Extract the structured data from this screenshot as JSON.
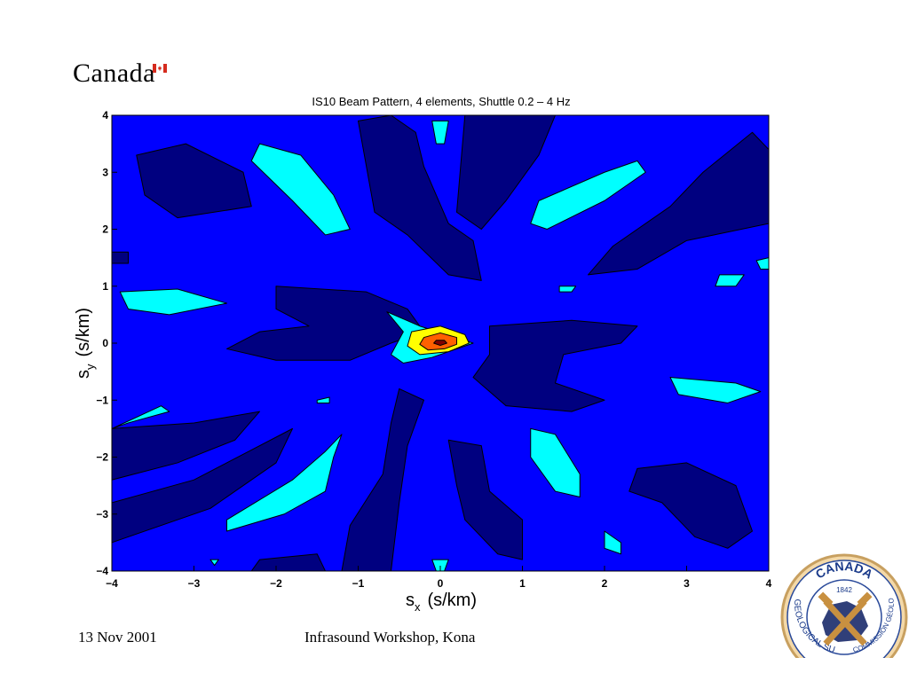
{
  "header": {
    "brand": "Canada"
  },
  "footer": {
    "date": "13 Nov 2001",
    "event": "Infrasound Workshop, Kona"
  },
  "seal": {
    "top_text": "CANADA",
    "year": "1842",
    "left_text": "GEOLOGICAL SURVEY",
    "right_text": "COMMISSION GÉOLOGIQUE"
  },
  "colors": {
    "background_level": "#0000ff",
    "dark_level": "#000080",
    "cyan_level": "#00ffff",
    "yellow_level": "#ffff00",
    "orange_level": "#ff6000",
    "peak_level": "#800000"
  },
  "chart_data": {
    "type": "heatmap",
    "subtype": "contour",
    "title": "IS10 Beam Pattern, 4 elements, Shuttle 0.2 – 4 Hz",
    "xlabel_main": "s",
    "xlabel_sub": "x",
    "xlabel_unit": "(s/km)",
    "ylabel_main": "s",
    "ylabel_sub": "y",
    "ylabel_unit": "(s/km)",
    "xlim": [
      -4,
      4
    ],
    "ylim": [
      -4,
      4
    ],
    "xticks": [
      -4,
      -3,
      -2,
      -1,
      0,
      1,
      2,
      3,
      4
    ],
    "yticks": [
      -4,
      -3,
      -2,
      -1,
      0,
      1,
      2,
      3,
      4
    ],
    "xtick_labels": [
      "−4",
      "−3",
      "−2",
      "−1",
      "0",
      "1",
      "2",
      "3",
      "4"
    ],
    "ytick_labels": [
      "−4",
      "−3",
      "−2",
      "−1",
      "0",
      "1",
      "2",
      "3",
      "4"
    ],
    "grid": false,
    "peak": {
      "x": 0,
      "y": 0
    },
    "regions": [
      {
        "level": "dark",
        "pts": [
          [
            -3.7,
            3.3
          ],
          [
            -3.1,
            3.5
          ],
          [
            -2.4,
            3.0
          ],
          [
            -2.3,
            2.4
          ],
          [
            -3.2,
            2.2
          ],
          [
            -3.6,
            2.6
          ]
        ]
      },
      {
        "level": "dark",
        "pts": [
          [
            -1.0,
            3.9
          ],
          [
            -0.6,
            4.0
          ],
          [
            -0.3,
            3.7
          ],
          [
            -0.2,
            3.1
          ],
          [
            0.1,
            2.1
          ],
          [
            0.4,
            1.8
          ],
          [
            0.5,
            1.1
          ],
          [
            0.1,
            1.2
          ],
          [
            -0.4,
            1.9
          ],
          [
            -0.8,
            2.3
          ],
          [
            -0.9,
            3.1
          ]
        ]
      },
      {
        "level": "dark",
        "pts": [
          [
            0.3,
            4.0
          ],
          [
            1.4,
            4.0
          ],
          [
            1.2,
            3.3
          ],
          [
            0.8,
            2.5
          ],
          [
            0.5,
            2.0
          ],
          [
            0.2,
            2.3
          ]
        ]
      },
      {
        "level": "dark",
        "pts": [
          [
            3.8,
            3.7
          ],
          [
            4.0,
            3.4
          ],
          [
            4.0,
            2.1
          ],
          [
            3.0,
            1.8
          ],
          [
            2.4,
            1.3
          ],
          [
            1.8,
            1.2
          ],
          [
            2.1,
            1.7
          ],
          [
            2.8,
            2.4
          ],
          [
            3.2,
            3.0
          ]
        ]
      },
      {
        "level": "dark",
        "pts": [
          [
            -2.0,
            1.0
          ],
          [
            -0.9,
            0.9
          ],
          [
            -0.4,
            0.6
          ],
          [
            -0.2,
            0.2
          ],
          [
            -0.6,
            0.0
          ],
          [
            -1.1,
            -0.3
          ],
          [
            -2.0,
            -0.3
          ],
          [
            -2.6,
            -0.1
          ],
          [
            -2.2,
            0.2
          ],
          [
            -1.6,
            0.3
          ],
          [
            -2.0,
            0.6
          ]
        ]
      },
      {
        "level": "dark",
        "pts": [
          [
            0.6,
            0.3
          ],
          [
            1.6,
            0.4
          ],
          [
            2.4,
            0.3
          ],
          [
            2.2,
            0.0
          ],
          [
            1.5,
            -0.2
          ],
          [
            1.4,
            -0.7
          ],
          [
            2.0,
            -1.0
          ],
          [
            1.6,
            -1.2
          ],
          [
            0.8,
            -1.1
          ],
          [
            0.4,
            -0.6
          ],
          [
            0.6,
            -0.2
          ]
        ]
      },
      {
        "level": "dark",
        "pts": [
          [
            -4.0,
            -1.5
          ],
          [
            -3.0,
            -1.4
          ],
          [
            -2.2,
            -1.2
          ],
          [
            -2.5,
            -1.7
          ],
          [
            -3.2,
            -2.1
          ],
          [
            -4.0,
            -2.4
          ]
        ]
      },
      {
        "level": "dark",
        "pts": [
          [
            -4.0,
            -2.8
          ],
          [
            -3.0,
            -2.4
          ],
          [
            -1.8,
            -1.5
          ],
          [
            -2.0,
            -2.1
          ],
          [
            -2.8,
            -2.9
          ],
          [
            -4.0,
            -3.5
          ]
        ]
      },
      {
        "level": "dark",
        "pts": [
          [
            -0.5,
            -0.8
          ],
          [
            -0.2,
            -1.0
          ],
          [
            -0.4,
            -1.8
          ],
          [
            -0.5,
            -2.8
          ],
          [
            -0.6,
            -4.0
          ],
          [
            -1.2,
            -4.0
          ],
          [
            -1.1,
            -3.2
          ],
          [
            -0.7,
            -2.3
          ],
          [
            -0.6,
            -1.4
          ]
        ]
      },
      {
        "level": "dark",
        "pts": [
          [
            0.1,
            -1.7
          ],
          [
            0.5,
            -1.8
          ],
          [
            0.6,
            -2.6
          ],
          [
            1.0,
            -3.1
          ],
          [
            1.0,
            -3.8
          ],
          [
            0.7,
            -3.7
          ],
          [
            0.3,
            -3.1
          ],
          [
            0.2,
            -2.5
          ]
        ]
      },
      {
        "level": "dark",
        "pts": [
          [
            2.4,
            -2.2
          ],
          [
            3.0,
            -2.1
          ],
          [
            3.6,
            -2.5
          ],
          [
            3.8,
            -3.3
          ],
          [
            3.5,
            -3.6
          ],
          [
            3.1,
            -3.4
          ],
          [
            2.7,
            -2.8
          ],
          [
            2.3,
            -2.6
          ]
        ]
      },
      {
        "level": "dark",
        "pts": [
          [
            -2.2,
            -3.8
          ],
          [
            -1.5,
            -3.7
          ],
          [
            -1.4,
            -4.0
          ],
          [
            -2.3,
            -4.0
          ]
        ]
      },
      {
        "level": "dark",
        "pts": [
          [
            -4.0,
            1.6
          ],
          [
            -3.8,
            1.6
          ],
          [
            -3.8,
            1.4
          ],
          [
            -4.0,
            1.4
          ]
        ]
      },
      {
        "level": "cyan",
        "pts": [
          [
            -2.2,
            3.5
          ],
          [
            -1.7,
            3.3
          ],
          [
            -1.3,
            2.6
          ],
          [
            -1.1,
            2.0
          ],
          [
            -1.4,
            1.9
          ],
          [
            -1.8,
            2.5
          ],
          [
            -2.3,
            3.2
          ]
        ]
      },
      {
        "level": "cyan",
        "pts": [
          [
            1.2,
            2.5
          ],
          [
            2.0,
            3.0
          ],
          [
            2.4,
            3.2
          ],
          [
            2.5,
            3.0
          ],
          [
            2.0,
            2.5
          ],
          [
            1.3,
            2.0
          ],
          [
            1.1,
            2.1
          ]
        ]
      },
      {
        "level": "cyan",
        "pts": [
          [
            -3.9,
            0.9
          ],
          [
            -3.2,
            0.95
          ],
          [
            -2.6,
            0.7
          ],
          [
            -3.3,
            0.5
          ],
          [
            -3.8,
            0.6
          ]
        ]
      },
      {
        "level": "cyan",
        "pts": [
          [
            2.8,
            -0.6
          ],
          [
            3.6,
            -0.7
          ],
          [
            3.9,
            -0.85
          ],
          [
            3.5,
            -1.05
          ],
          [
            2.9,
            -0.9
          ]
        ]
      },
      {
        "level": "cyan",
        "pts": [
          [
            -4.0,
            -1.5
          ],
          [
            -3.4,
            -1.1
          ],
          [
            -3.3,
            -1.2
          ],
          [
            -3.8,
            -1.4
          ]
        ]
      },
      {
        "level": "cyan",
        "pts": [
          [
            -1.2,
            -1.6
          ],
          [
            -1.4,
            -1.9
          ],
          [
            -1.8,
            -2.4
          ],
          [
            -2.6,
            -3.1
          ],
          [
            -2.6,
            -3.3
          ],
          [
            -1.9,
            -3.0
          ],
          [
            -1.4,
            -2.6
          ],
          [
            -1.3,
            -2.0
          ]
        ]
      },
      {
        "level": "cyan",
        "pts": [
          [
            1.1,
            -1.5
          ],
          [
            1.4,
            -1.6
          ],
          [
            1.7,
            -2.3
          ],
          [
            1.7,
            -2.7
          ],
          [
            1.4,
            -2.6
          ],
          [
            1.1,
            -2.0
          ]
        ]
      },
      {
        "level": "cyan",
        "pts": [
          [
            -0.1,
            3.9
          ],
          [
            0.1,
            3.9
          ],
          [
            0.05,
            3.5
          ],
          [
            -0.05,
            3.5
          ]
        ]
      },
      {
        "level": "cyan",
        "pts": [
          [
            3.4,
            1.2
          ],
          [
            3.7,
            1.2
          ],
          [
            3.6,
            1.0
          ],
          [
            3.35,
            1.0
          ]
        ]
      },
      {
        "level": "cyan",
        "pts": [
          [
            3.85,
            1.45
          ],
          [
            4.0,
            1.5
          ],
          [
            4.0,
            1.3
          ],
          [
            3.9,
            1.3
          ]
        ]
      },
      {
        "level": "cyan",
        "pts": [
          [
            1.45,
            1.0
          ],
          [
            1.65,
            1.0
          ],
          [
            1.6,
            0.9
          ],
          [
            1.45,
            0.9
          ]
        ]
      },
      {
        "level": "cyan",
        "pts": [
          [
            -0.1,
            -3.8
          ],
          [
            0.1,
            -3.8
          ],
          [
            0.05,
            -4.0
          ],
          [
            -0.05,
            -4.0
          ]
        ]
      },
      {
        "level": "cyan",
        "pts": [
          [
            -2.8,
            -3.8
          ],
          [
            -2.7,
            -3.8
          ],
          [
            -2.75,
            -3.9
          ]
        ]
      },
      {
        "level": "cyan",
        "pts": [
          [
            2.0,
            -3.3
          ],
          [
            2.2,
            -3.5
          ],
          [
            2.2,
            -3.7
          ],
          [
            2.0,
            -3.6
          ]
        ]
      },
      {
        "level": "cyan",
        "pts": [
          [
            -1.5,
            -1.0
          ],
          [
            -1.35,
            -0.95
          ],
          [
            -1.35,
            -1.05
          ],
          [
            -1.5,
            -1.05
          ]
        ]
      },
      {
        "level": "cyan",
        "pts": [
          [
            -0.65,
            0.55
          ],
          [
            -0.25,
            0.3
          ],
          [
            0.4,
            0.0
          ],
          [
            -0.1,
            -0.25
          ],
          [
            -0.45,
            -0.35
          ],
          [
            -0.6,
            -0.2
          ],
          [
            -0.45,
            0.2
          ]
        ]
      },
      {
        "level": "yellow",
        "pts": [
          [
            -0.35,
            0.2
          ],
          [
            0.0,
            0.3
          ],
          [
            0.3,
            0.15
          ],
          [
            0.35,
            0.0
          ],
          [
            0.1,
            -0.15
          ],
          [
            -0.25,
            -0.2
          ],
          [
            -0.4,
            -0.05
          ]
        ]
      },
      {
        "level": "orange",
        "pts": [
          [
            -0.2,
            0.1
          ],
          [
            0.0,
            0.18
          ],
          [
            0.2,
            0.1
          ],
          [
            0.2,
            -0.02
          ],
          [
            0.05,
            -0.1
          ],
          [
            -0.15,
            -0.12
          ],
          [
            -0.25,
            -0.02
          ]
        ]
      },
      {
        "level": "peak",
        "pts": [
          [
            -0.05,
            0.05
          ],
          [
            0.05,
            0.05
          ],
          [
            0.08,
            0.0
          ],
          [
            0.0,
            -0.04
          ],
          [
            -0.08,
            0.0
          ]
        ]
      }
    ]
  }
}
